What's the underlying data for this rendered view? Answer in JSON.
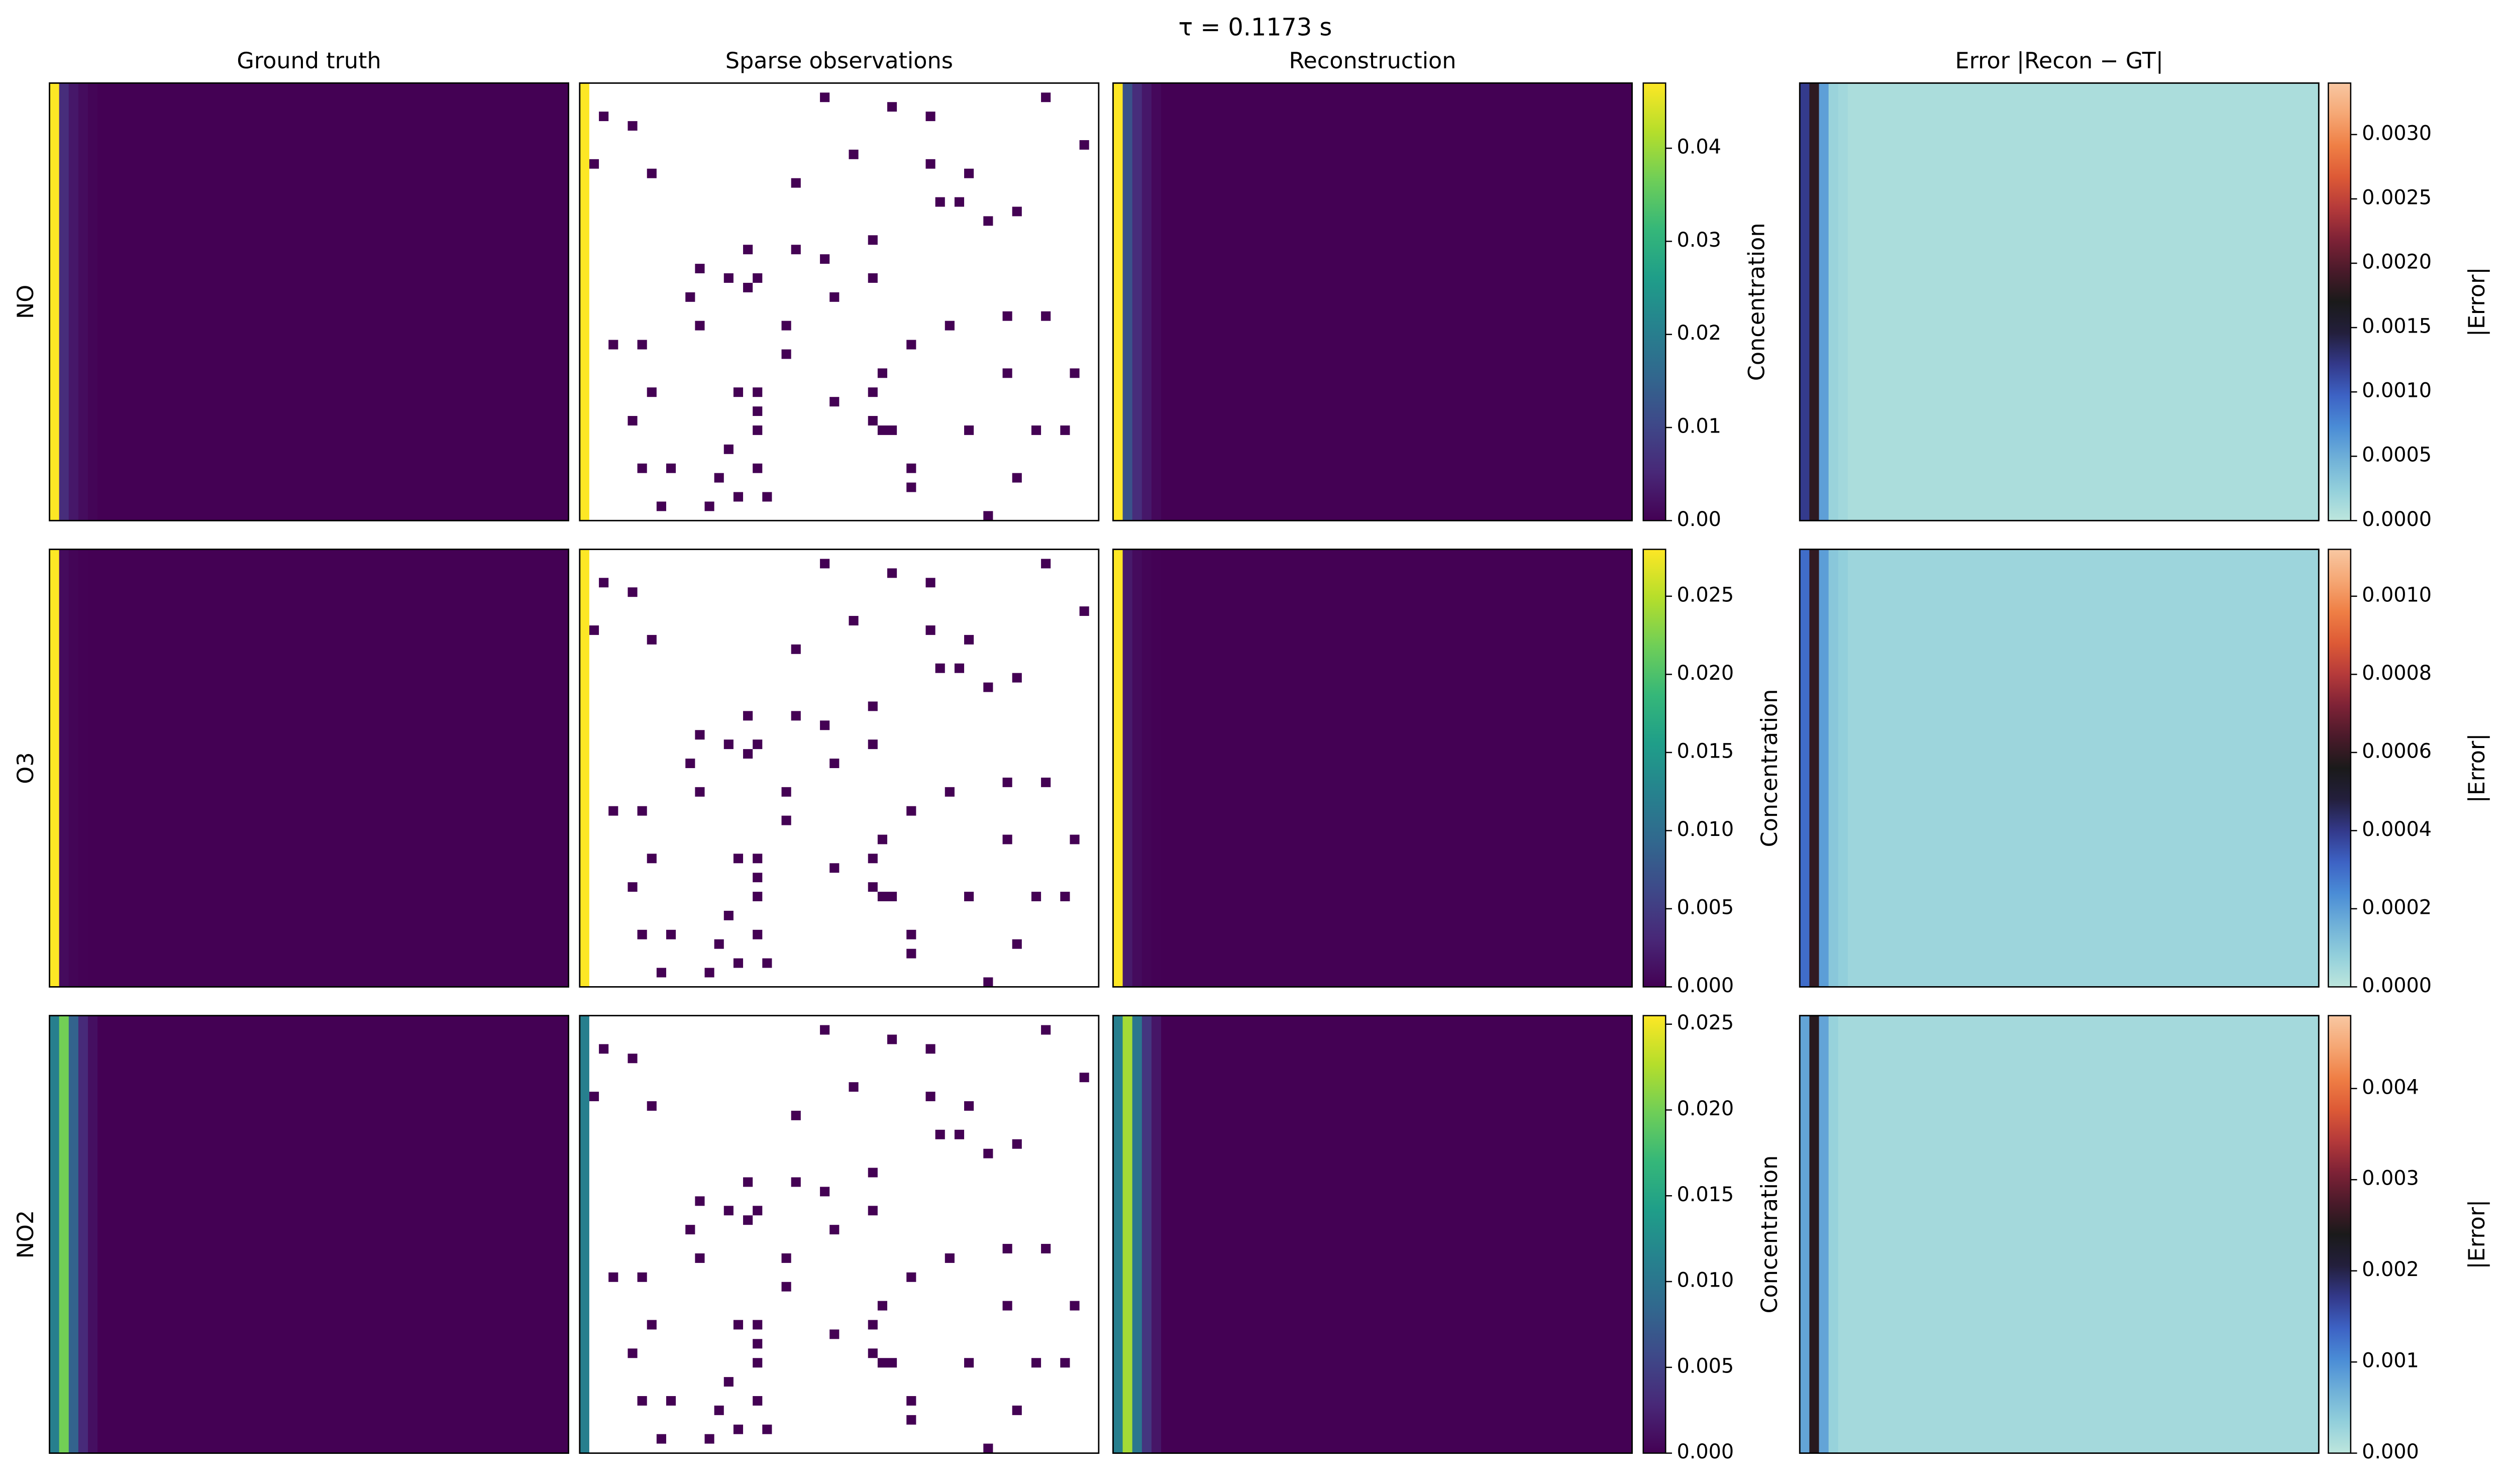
{
  "title": "τ = 0.1173 s",
  "column_titles": [
    "Ground truth",
    "Sparse observations",
    "Reconstruction",
    "Error |Recon − GT|"
  ],
  "grid_size": [
    54,
    46
  ],
  "observed_cells": [
    [
      25,
      1
    ],
    [
      2,
      3
    ],
    [
      36,
      3
    ],
    [
      48,
      1
    ],
    [
      32,
      2
    ],
    [
      5,
      4
    ],
    [
      1,
      8
    ],
    [
      7,
      9
    ],
    [
      36,
      8
    ],
    [
      28,
      7
    ],
    [
      40,
      9
    ],
    [
      22,
      10
    ],
    [
      52,
      6
    ],
    [
      37,
      12
    ],
    [
      39,
      12
    ],
    [
      45,
      13
    ],
    [
      42,
      14
    ],
    [
      30,
      16
    ],
    [
      17,
      17
    ],
    [
      22,
      17
    ],
    [
      25,
      18
    ],
    [
      12,
      19
    ],
    [
      15,
      20
    ],
    [
      17,
      21
    ],
    [
      18,
      20
    ],
    [
      11,
      22
    ],
    [
      12,
      25
    ],
    [
      26,
      22
    ],
    [
      21,
      25
    ],
    [
      30,
      20
    ],
    [
      44,
      24
    ],
    [
      38,
      25
    ],
    [
      48,
      24
    ],
    [
      6,
      27
    ],
    [
      3,
      27
    ],
    [
      21,
      28
    ],
    [
      34,
      27
    ],
    [
      44,
      30
    ],
    [
      51,
      30
    ],
    [
      16,
      32
    ],
    [
      18,
      32
    ],
    [
      30,
      32
    ],
    [
      7,
      32
    ],
    [
      31,
      30
    ],
    [
      26,
      33
    ],
    [
      5,
      35
    ],
    [
      18,
      34
    ],
    [
      30,
      35
    ],
    [
      31,
      36
    ],
    [
      32,
      36
    ],
    [
      40,
      36
    ],
    [
      47,
      36
    ],
    [
      50,
      36
    ],
    [
      6,
      40
    ],
    [
      9,
      40
    ],
    [
      15,
      38
    ],
    [
      18,
      36
    ],
    [
      14,
      41
    ],
    [
      18,
      40
    ],
    [
      34,
      40
    ],
    [
      45,
      41
    ],
    [
      8,
      44
    ],
    [
      13,
      44
    ],
    [
      16,
      43
    ],
    [
      19,
      43
    ],
    [
      34,
      42
    ],
    [
      42,
      45
    ]
  ],
  "chart_data": [
    {
      "type": "heatmap",
      "row_label": "NO",
      "colormap": "viridis",
      "error_colormap": "icefire",
      "bins": [
        0,
        1,
        2,
        3,
        4,
        5,
        54
      ],
      "ground_truth": [
        0.047,
        0.006,
        0.003,
        0.0015,
        0.0005,
        0
      ],
      "reconstruction": [
        0.047,
        0.012,
        0.006,
        0.003,
        0.001,
        0
      ],
      "error": [
        0.0012,
        0.0018,
        0.0006,
        0.0002,
        0.00015,
        0.0001
      ],
      "ylabel": "Concentration",
      "ylim": [
        0,
        0.047
      ],
      "yticks": [
        {
          "value": 0,
          "label": "0.00"
        },
        0.01,
        0.02,
        0.03,
        0.04
      ],
      "y2label": "|Error|",
      "y2lim": [
        0,
        0.0034
      ],
      "y2ticks": [
        {
          "value": 0,
          "label": "0.0000"
        },
        0.0005,
        {
          "value": 0.001,
          "label": "0.0010"
        },
        0.0015,
        {
          "value": 0.002,
          "label": "0.0020"
        },
        0.0025,
        {
          "value": 0.003,
          "label": "0.0030"
        }
      ]
    },
    {
      "type": "heatmap",
      "row_label": "O3",
      "colormap": "viridis",
      "error_colormap": "icefire",
      "bins": [
        0,
        1,
        2,
        3,
        4,
        5,
        54
      ],
      "ground_truth": [
        0.028,
        0.0008,
        0.0003,
        0.0001,
        0,
        0
      ],
      "reconstruction": [
        0.028,
        0.002,
        0.0008,
        0.0003,
        0.0001,
        0
      ],
      "error": [
        0.0003,
        0.0006,
        0.0002,
        0.0001,
        8e-05,
        6e-05
      ],
      "ylabel": "Concentration",
      "ylim": [
        0,
        0.028
      ],
      "yticks": [
        {
          "value": 0,
          "label": "0.000"
        },
        0.005,
        {
          "value": 0.01,
          "label": "0.010"
        },
        0.015,
        {
          "value": 0.02,
          "label": "0.020"
        },
        0.025
      ],
      "y2label": "|Error|",
      "y2lim": [
        0,
        0.00112
      ],
      "y2ticks": [
        {
          "value": 0,
          "label": "0.0000"
        },
        0.0002,
        0.0004,
        0.0006,
        0.0008,
        {
          "value": 0.001,
          "label": "0.0010"
        }
      ]
    },
    {
      "type": "heatmap",
      "row_label": "NO2",
      "colormap": "viridis",
      "error_colormap": "icefire",
      "bins": [
        0,
        1,
        2,
        3,
        4,
        5,
        54
      ],
      "ground_truth": [
        0.011,
        0.02,
        0.008,
        0.003,
        0.001,
        0
      ],
      "reconstruction": [
        0.011,
        0.022,
        0.01,
        0.004,
        0.0015,
        0
      ],
      "error": [
        0.0008,
        0.0025,
        0.0008,
        0.0003,
        0.0002,
        0.0002
      ],
      "ylabel": "Concentration",
      "ylim": [
        0,
        0.0255
      ],
      "yticks": [
        {
          "value": 0,
          "label": "0.000"
        },
        0.005,
        {
          "value": 0.01,
          "label": "0.010"
        },
        0.015,
        {
          "value": 0.02,
          "label": "0.020"
        },
        0.025
      ],
      "y2label": "|Error|",
      "y2lim": [
        0,
        0.0048
      ],
      "y2ticks": [
        {
          "value": 0,
          "label": "0.000"
        },
        0.001,
        0.002,
        0.003,
        0.004
      ]
    }
  ]
}
